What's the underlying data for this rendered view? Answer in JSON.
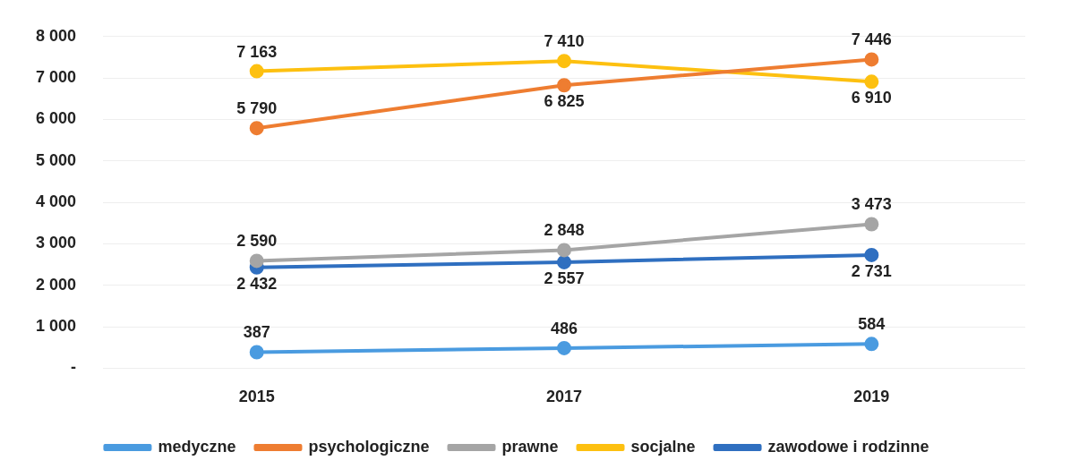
{
  "chart_data": {
    "type": "line",
    "categories": [
      "2015",
      "2017",
      "2019"
    ],
    "series": [
      {
        "name": "medyczne",
        "color": "#4a9be0",
        "values": [
          387,
          486,
          584
        ],
        "value_labels": [
          "387",
          "486",
          "584"
        ]
      },
      {
        "name": "psychologiczne",
        "color": "#ee7d31",
        "values": [
          5790,
          6825,
          7446
        ],
        "value_labels": [
          "5 790",
          "6 825",
          "7 446"
        ]
      },
      {
        "name": "prawne",
        "color": "#a5a5a5",
        "values": [
          2590,
          2848,
          3473
        ],
        "value_labels": [
          "2 590",
          "2 848",
          "3 473"
        ]
      },
      {
        "name": "socjalne",
        "color": "#fdc010",
        "values": [
          7163,
          7410,
          6910
        ],
        "value_labels": [
          "7 163",
          "7 410",
          "6 910"
        ]
      },
      {
        "name": "zawodowe i rodzinne",
        "color": "#2f6fc0",
        "values": [
          2432,
          2557,
          2731
        ],
        "value_labels": [
          "2 432",
          "2 557",
          "2 731"
        ]
      }
    ],
    "ylim": [
      0,
      8000
    ],
    "yticks": [
      {
        "value": 0,
        "label": "-"
      },
      {
        "value": 1000,
        "label": "1 000"
      },
      {
        "value": 2000,
        "label": "2 000"
      },
      {
        "value": 3000,
        "label": "3 000"
      },
      {
        "value": 4000,
        "label": "4 000"
      },
      {
        "value": 5000,
        "label": "5 000"
      },
      {
        "value": 6000,
        "label": "6 000"
      },
      {
        "value": 7000,
        "label": "7 000"
      },
      {
        "value": 8000,
        "label": "8 000"
      }
    ],
    "grid": "y",
    "legend": "bottom",
    "marker": "circle",
    "line_style": "solid"
  }
}
